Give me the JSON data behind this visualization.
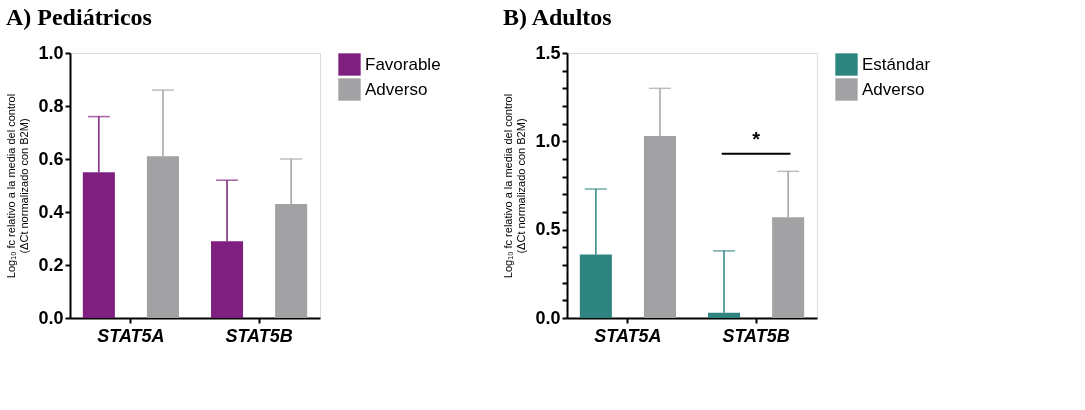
{
  "chart_data": [
    {
      "type": "bar",
      "title": "A)  Pediátricos",
      "ylabel": "Log₁₀ fc relativo a la media del control\n(ΔCt normalizado con B2M)",
      "categories": [
        "STAT5A",
        "STAT5B"
      ],
      "series": [
        {
          "name": "Favorable",
          "color": "#7f1f7f",
          "values": [
            0.55,
            0.29
          ],
          "errors": [
            [
              0.55,
              0.76
            ],
            [
              0.29,
              0.52
            ]
          ]
        },
        {
          "name": "Adverso",
          "color": "#a2a2a4",
          "values": [
            0.61,
            0.43
          ],
          "errors": [
            [
              0.61,
              0.86
            ],
            [
              0.43,
              0.6
            ]
          ]
        }
      ],
      "ylim": [
        0,
        1.0
      ],
      "yticks": [
        {
          "value": 0,
          "label": "0.0"
        },
        0.2,
        0.4,
        0.6,
        0.8,
        {
          "value": 1,
          "label": "1.0"
        }
      ],
      "grid": false,
      "legend": "top right"
    },
    {
      "type": "bar",
      "title": "B) Adultos",
      "ylabel": "Log₁₀ fc relativo a la media del control\n(ΔCt normalizado con B2M)",
      "categories": [
        "STAT5A",
        "STAT5B"
      ],
      "series": [
        {
          "name": "Estándar",
          "color": "#2e8580",
          "values": [
            0.36,
            0.03
          ],
          "errors": [
            [
              0.36,
              0.73
            ],
            [
              0.03,
              0.38
            ]
          ]
        },
        {
          "name": "Adverso",
          "color": "#a2a2a4",
          "values": [
            1.03,
            0.57
          ],
          "errors": [
            [
              1.03,
              1.3
            ],
            [
              0.57,
              0.83
            ]
          ]
        }
      ],
      "ylim": [
        0,
        1.5
      ],
      "yticks": [
        {
          "value": 0,
          "label": "0.0"
        },
        {
          "value": 0.1,
          "label": null
        },
        {
          "value": 0.2,
          "label": null
        },
        {
          "value": 0.3,
          "label": null
        },
        {
          "value": 0.4,
          "label": null
        },
        0.5,
        {
          "value": 0.6,
          "label": null
        },
        {
          "value": 0.7,
          "label": null
        },
        {
          "value": 0.8,
          "label": null
        },
        {
          "value": 0.9,
          "label": null
        },
        {
          "value": 1,
          "label": "1.0"
        },
        {
          "value": 1.1,
          "label": null
        },
        {
          "value": 1.2,
          "label": null
        },
        {
          "value": 1.3,
          "label": null
        },
        {
          "value": 1.4,
          "label": null
        },
        1.5
      ],
      "annotations": [
        "*"
      ],
      "grid": false,
      "legend": "top right"
    }
  ]
}
